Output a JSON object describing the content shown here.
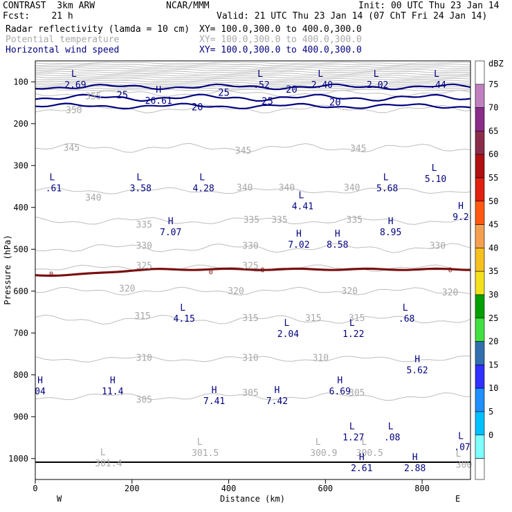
{
  "header": {
    "line1_left": "CONTRAST  3km ARW",
    "line1_center": "NCAR/MMM",
    "line1_right": "Init: 00 UTC Thu 23 Jan 14",
    "line2_left": "Fcst:    21 h",
    "line2_right": "Valid: 21 UTC Thu 23 Jan 14 (07 ChT Fri 24 Jan 14)",
    "fields": [
      {
        "name": "Radar reflectivity (lamda = 10 cm)",
        "xy": "XY= 100.0,300.0 to 400.0,300.0",
        "color": "#000000"
      },
      {
        "name": "Potential temperature",
        "xy": "XY= 100.0,300.0 to 400.0,300.0",
        "color": "#a8a8a8"
      },
      {
        "name": "Horizontal wind speed",
        "xy": "XY= 100.0,300.0 to 400.0,300.0",
        "color": "#000080"
      }
    ]
  },
  "chart_data": {
    "type": "cross-section contour",
    "xlabel": "Distance (km)",
    "ylabel": "Pressure (hPa)",
    "xlim": [
      0,
      900
    ],
    "ylim_hpa": [
      1050,
      50
    ],
    "x_ticks": [
      "0",
      "200",
      "400",
      "600",
      "800"
    ],
    "y_ticks": [
      "100",
      "200",
      "300",
      "400",
      "500",
      "600",
      "700",
      "800",
      "900",
      "1000"
    ],
    "x_end_labels": {
      "left": "W",
      "right": "E"
    },
    "colorbar": {
      "unit": "dBZ",
      "levels": [
        "75",
        "70",
        "65",
        "60",
        "55",
        "50",
        "45",
        "40",
        "35",
        "30",
        "25",
        "20",
        "15",
        "10",
        "5",
        "0"
      ],
      "colors": [
        "#ffffff",
        "#c080c0",
        "#8a2c8a",
        "#8a2c4a",
        "#b01010",
        "#e02010",
        "#ff5a10",
        "#f5a050",
        "#f5c020",
        "#f5e020",
        "#00a000",
        "#40e040",
        "#3070b0",
        "#3030ff",
        "#1e90ff",
        "#00c0ff",
        "#80ffff"
      ]
    },
    "theta_contours": [
      "355",
      "350",
      "345",
      "340",
      "335",
      "330",
      "325",
      "320",
      "315",
      "310",
      "305"
    ],
    "wind_contours": [
      "25",
      "20"
    ],
    "theta_labels": [
      {
        "t": "355",
        "x": 120,
        "p": 135
      },
      {
        "t": "350",
        "x": 80,
        "p": 168
      },
      {
        "t": "345",
        "x": 75,
        "p": 258
      },
      {
        "t": "345",
        "x": 430,
        "p": 265
      },
      {
        "t": "345",
        "x": 668,
        "p": 260
      },
      {
        "t": "340",
        "x": 120,
        "p": 377
      },
      {
        "t": "340",
        "x": 433,
        "p": 353
      },
      {
        "t": "340",
        "x": 520,
        "p": 353
      },
      {
        "t": "340",
        "x": 655,
        "p": 353
      },
      {
        "t": "335",
        "x": 225,
        "p": 442
      },
      {
        "t": "335",
        "x": 447,
        "p": 430
      },
      {
        "t": "335",
        "x": 505,
        "p": 430
      },
      {
        "t": "335",
        "x": 660,
        "p": 430
      },
      {
        "t": "330",
        "x": 225,
        "p": 492
      },
      {
        "t": "330",
        "x": 445,
        "p": 492
      },
      {
        "t": "330",
        "x": 832,
        "p": 492
      },
      {
        "t": "325",
        "x": 225,
        "p": 540
      },
      {
        "t": "325",
        "x": 445,
        "p": 540
      },
      {
        "t": "320",
        "x": 190,
        "p": 595
      },
      {
        "t": "320",
        "x": 415,
        "p": 600
      },
      {
        "t": "320",
        "x": 650,
        "p": 600
      },
      {
        "t": "320",
        "x": 858,
        "p": 604
      },
      {
        "t": "315",
        "x": 222,
        "p": 660
      },
      {
        "t": "315",
        "x": 445,
        "p": 665
      },
      {
        "t": "315",
        "x": 575,
        "p": 665
      },
      {
        "t": "315",
        "x": 665,
        "p": 665
      },
      {
        "t": "310",
        "x": 225,
        "p": 760
      },
      {
        "t": "310",
        "x": 445,
        "p": 760
      },
      {
        "t": "310",
        "x": 590,
        "p": 760
      },
      {
        "t": "305",
        "x": 225,
        "p": 860
      },
      {
        "t": "305",
        "x": 445,
        "p": 843
      },
      {
        "t": "305",
        "x": 665,
        "p": 843
      }
    ],
    "zero_labels": [
      {
        "t": "0",
        "x": 33,
        "p": 558
      },
      {
        "t": "0",
        "x": 363,
        "p": 553
      },
      {
        "t": "0",
        "x": 470,
        "p": 548
      },
      {
        "t": "0",
        "x": 858,
        "p": 548
      }
    ],
    "wind_labels": [
      {
        "t": "25",
        "x": 180,
        "p": 131
      },
      {
        "t": "25",
        "x": 390,
        "p": 125
      },
      {
        "t": "25",
        "x": 480,
        "p": 146
      },
      {
        "t": "20",
        "x": 530,
        "p": 118
      },
      {
        "t": "20",
        "x": 335,
        "p": 160
      },
      {
        "t": "20",
        "x": 620,
        "p": 148
      }
    ],
    "theta_extrema": [
      {
        "k": "L",
        "v": "301.4",
        "x": 140,
        "p": 997
      },
      {
        "k": "L",
        "v": "301.5",
        "x": 340,
        "p": 972
      },
      {
        "k": "L",
        "v": "300.9",
        "x": 585,
        "p": 972
      },
      {
        "k": "L",
        "v": "300.5",
        "x": 680,
        "p": 972
      },
      {
        "k": "L",
        "v": "300",
        "x": 875,
        "p": 1000
      }
    ],
    "extrema": [
      {
        "k": "L",
        "v": "2.69",
        "x": 80,
        "p": 93
      },
      {
        "k": "L",
        "v": ".52",
        "x": 465,
        "p": 93
      },
      {
        "k": "L",
        "v": "2.40",
        "x": 590,
        "p": 93
      },
      {
        "k": "L",
        "v": "2.02",
        "x": 705,
        "p": 93
      },
      {
        "k": "L",
        "v": ".44",
        "x": 830,
        "p": 93
      },
      {
        "k": "H",
        "v": "26.61",
        "x": 255,
        "p": 131
      },
      {
        "k": "L",
        "v": ".61",
        "x": 35,
        "p": 340
      },
      {
        "k": "L",
        "v": "3.58",
        "x": 215,
        "p": 340
      },
      {
        "k": "L",
        "v": "4.28",
        "x": 345,
        "p": 340
      },
      {
        "k": "L",
        "v": "4.41",
        "x": 550,
        "p": 383
      },
      {
        "k": "L",
        "v": "5.68",
        "x": 725,
        "p": 340
      },
      {
        "k": "L",
        "v": "5.10",
        "x": 825,
        "p": 318
      },
      {
        "k": "H",
        "v": "9.2",
        "x": 880,
        "p": 409
      },
      {
        "k": "H",
        "v": "7.07",
        "x": 280,
        "p": 445
      },
      {
        "k": "H",
        "v": "7.02",
        "x": 545,
        "p": 475
      },
      {
        "k": "H",
        "v": "8.58",
        "x": 625,
        "p": 475
      },
      {
        "k": "H",
        "v": "8.95",
        "x": 735,
        "p": 445
      },
      {
        "k": "L",
        "v": "4.15",
        "x": 305,
        "p": 652
      },
      {
        "k": "L",
        "v": "2.04",
        "x": 520,
        "p": 688
      },
      {
        "k": "L",
        "v": "1.22",
        "x": 655,
        "p": 688
      },
      {
        "k": "L",
        "v": ".68",
        "x": 765,
        "p": 652
      },
      {
        "k": "H",
        "v": "5.62",
        "x": 790,
        "p": 775
      },
      {
        "k": "H",
        "v": "04",
        "x": 10,
        "p": 825
      },
      {
        "k": "H",
        "v": "11.4",
        "x": 160,
        "p": 825
      },
      {
        "k": "H",
        "v": "7.41",
        "x": 370,
        "p": 848
      },
      {
        "k": "H",
        "v": "7.42",
        "x": 500,
        "p": 848
      },
      {
        "k": "H",
        "v": "6.69",
        "x": 630,
        "p": 825
      },
      {
        "k": "L",
        "v": "1.27",
        "x": 655,
        "p": 935
      },
      {
        "k": "L",
        "v": ".08",
        "x": 735,
        "p": 935
      },
      {
        "k": "L",
        "v": ".07",
        "x": 880,
        "p": 958
      },
      {
        "k": "H",
        "v": "2.61",
        "x": 675,
        "p": 1009
      },
      {
        "k": "H",
        "v": "2.88",
        "x": 785,
        "p": 1009
      }
    ]
  }
}
